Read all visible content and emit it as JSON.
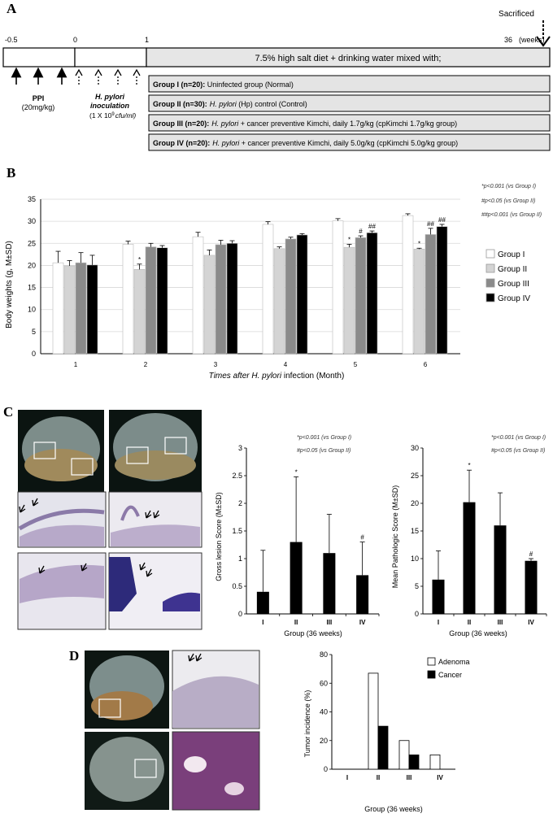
{
  "panelA": {
    "letter": "A",
    "sacrificed_label": "Sacrificed",
    "timeline_ticks": [
      "-0.5",
      "0",
      "1"
    ],
    "end_tick": "36",
    "weeks_unit": "(weeks)",
    "diet_label": "7.5% high salt diet + drinking water mixed with;",
    "ppi_label": "PPI",
    "ppi_dose": "(20mg/kg)",
    "hp_label_line1": "H. pylori",
    "hp_label_line2": "inoculation",
    "hp_dose": "(1 X 10",
    "hp_dose_exp": "9",
    "hp_dose_unit": "cfu/ml)",
    "groups": [
      {
        "head": "Group I  (n=20):",
        "sp": "",
        "rest": " Uninfected group (Normal)"
      },
      {
        "head": "Group II (n=30):",
        "sp": "H. pylori",
        "rest": " (Hp) control (Control)"
      },
      {
        "head": "Group III (n=20):",
        "sp": "H. pylori",
        "rest": " + cancer preventive Kimchi, daily 1.7g/kg (cpKimchi 1.7g/kg group)"
      },
      {
        "head": "Group IV (n=20):",
        "sp": "H. pylori",
        "rest": " + cancer preventive Kimchi, daily 5.0g/kg (cpKimchi 5.0g/kg group)"
      }
    ]
  },
  "panelB": {
    "letter": "B",
    "stats": [
      "*p<0.001 (vs Group I)",
      "#p<0.05 (vs Group II)",
      "##p<0.001 (vs Group II)"
    ],
    "chart_data": {
      "type": "bar",
      "title": "",
      "ylabel": "Body weights (g, M±SD)",
      "xlabel_prefix": "Times after ",
      "xlabel_species": "H. pylori",
      "xlabel_suffix": " infection (Month)",
      "ylim": [
        0,
        35
      ],
      "yticks": [
        0,
        5,
        10,
        15,
        20,
        25,
        30,
        35
      ],
      "categories": [
        "1",
        "2",
        "3",
        "4",
        "5",
        "6"
      ],
      "series": [
        {
          "name": "Group I",
          "color": "#ffffff",
          "values": [
            20.6,
            24.8,
            26.5,
            29.3,
            30.1,
            31.3
          ],
          "sd": [
            2.6,
            0.7,
            1.0,
            0.6,
            0.5,
            0.4
          ],
          "marks": [
            "",
            "",
            "",
            "",
            "",
            ""
          ]
        },
        {
          "name": "Group II",
          "color": "#d4d4d4",
          "values": [
            19.9,
            19.1,
            22.3,
            23.8,
            24.1,
            23.7
          ],
          "sd": [
            1.2,
            1.2,
            1.2,
            0.4,
            0.7,
            0.2
          ],
          "marks": [
            "",
            "*",
            "",
            "",
            "*",
            "*"
          ]
        },
        {
          "name": "Group III",
          "color": "#8a8a8a",
          "values": [
            20.6,
            24.2,
            24.7,
            26.0,
            26.3,
            27.0
          ],
          "sd": [
            2.3,
            0.8,
            1.0,
            0.4,
            0.4,
            1.4
          ],
          "marks": [
            "",
            "",
            "",
            "",
            "#",
            "##"
          ]
        },
        {
          "name": "Group IV",
          "color": "#000000",
          "values": [
            20.1,
            24.0,
            25.0,
            26.9,
            27.4,
            28.8
          ],
          "sd": [
            2.2,
            0.5,
            0.6,
            0.3,
            0.4,
            0.5
          ],
          "marks": [
            "",
            "",
            "",
            "",
            "##",
            "##"
          ]
        }
      ]
    }
  },
  "panelC": {
    "letter": "C",
    "gross": {
      "stats": [
        "*p<0.001 (vs Group I)",
        "#p<0.05 (vs Group II)"
      ],
      "chart_data": {
        "type": "bar",
        "ylabel": "Gross lesion Score (M±SD)",
        "xlabel": "Group (36 weeks)",
        "ylim": [
          0,
          3
        ],
        "yticks": [
          "0",
          "0.5",
          "1",
          "1.5",
          "2",
          "2.5",
          "3"
        ],
        "ytick_values": [
          0,
          0.5,
          1,
          1.5,
          2,
          2.5,
          3
        ],
        "categories": [
          "I",
          "II",
          "III",
          "IV"
        ],
        "values": [
          0.4,
          1.3,
          1.1,
          0.7
        ],
        "sd": [
          0.75,
          1.18,
          0.7,
          0.6
        ],
        "marks": [
          "",
          "*",
          "",
          "#"
        ]
      }
    },
    "path": {
      "stats": [
        "*p<0.001 (vs Group I)",
        "#p<0.05 (vs Group II)"
      ],
      "chart_data": {
        "type": "bar",
        "ylabel": "Mean Pathologic Score (M±SD)",
        "xlabel": "Group (36 weeks)",
        "ylim": [
          0,
          30
        ],
        "yticks": [
          "0",
          "5",
          "10",
          "15",
          "20",
          "25",
          "30"
        ],
        "ytick_values": [
          0,
          5,
          10,
          15,
          20,
          25,
          30
        ],
        "categories": [
          "I",
          "II",
          "III",
          "IV"
        ],
        "values": [
          6.2,
          20.2,
          16.0,
          9.6
        ],
        "sd": [
          5.2,
          5.8,
          5.9,
          0.4
        ],
        "marks": [
          "",
          "*",
          "",
          "#"
        ]
      }
    }
  },
  "panelD": {
    "letter": "D",
    "chart_data": {
      "type": "bar",
      "ylabel": "Tumor incidence (%)",
      "xlabel": "Group (36 weeks)",
      "ylim": [
        0,
        80
      ],
      "yticks": [
        "0",
        "20",
        "40",
        "60",
        "80"
      ],
      "ytick_values": [
        0,
        20,
        40,
        60,
        80
      ],
      "categories": [
        "I",
        "II",
        "III",
        "IV"
      ],
      "series": [
        {
          "name": "Adenoma",
          "color": "#ffffff",
          "values": [
            0,
            67,
            20,
            10
          ]
        },
        {
          "name": "Cancer",
          "color": "#000000",
          "values": [
            0,
            30,
            10,
            0
          ]
        }
      ]
    }
  }
}
